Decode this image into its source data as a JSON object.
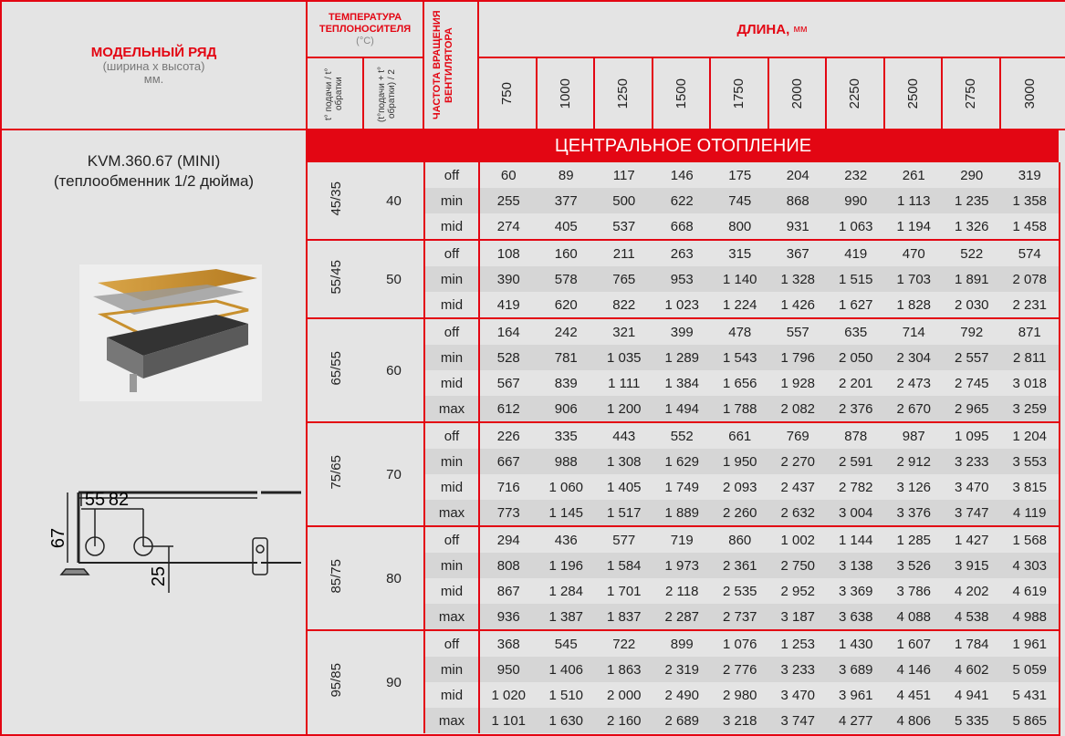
{
  "header": {
    "model_title": "МОДЕЛЬНЫЙ РЯД",
    "model_sub": "(ширина х высота) мм.",
    "temp_title": "ТЕМПЕРАТУРА ТЕПЛОНОСИТЕЛЯ",
    "temp_unit": "(°C)",
    "temp_col1": "t° подачи / t° обратки",
    "temp_col2": "(t°подачи + t° обратки) / 2",
    "fan_title": "ЧАСТОТА ВРАЩЕНИЯ ВЕНТИЛЯТОРА",
    "length_title": "ДЛИНА,",
    "length_unit": "мм",
    "lengths": [
      "750",
      "1000",
      "1250",
      "1500",
      "1750",
      "2000",
      "2250",
      "2500",
      "2750",
      "3000"
    ]
  },
  "model": {
    "name": "KVM.360.67 (MINI)",
    "desc": "(теплообменник 1/2 дюйма)",
    "dims": {
      "d1": "55",
      "d2": "82",
      "height": "67",
      "offset": "25"
    }
  },
  "section_title": "ЦЕНТРАЛЬНОЕ ОТОПЛЕНИЕ",
  "colors": {
    "accent": "#e30613",
    "background": "#e4e4e4",
    "stripe": "#d6d6d6"
  },
  "groups": [
    {
      "temp": "45/35",
      "avg": "40",
      "rows": [
        {
          "fan": "off",
          "values": [
            "60",
            "89",
            "117",
            "146",
            "175",
            "204",
            "232",
            "261",
            "290",
            "319"
          ]
        },
        {
          "fan": "min",
          "values": [
            "255",
            "377",
            "500",
            "622",
            "745",
            "868",
            "990",
            "1 113",
            "1 235",
            "1 358"
          ]
        },
        {
          "fan": "mid",
          "values": [
            "274",
            "405",
            "537",
            "668",
            "800",
            "931",
            "1 063",
            "1 194",
            "1 326",
            "1 458"
          ]
        }
      ]
    },
    {
      "temp": "55/45",
      "avg": "50",
      "rows": [
        {
          "fan": "off",
          "values": [
            "108",
            "160",
            "211",
            "263",
            "315",
            "367",
            "419",
            "470",
            "522",
            "574"
          ]
        },
        {
          "fan": "min",
          "values": [
            "390",
            "578",
            "765",
            "953",
            "1 140",
            "1 328",
            "1 515",
            "1 703",
            "1 891",
            "2 078"
          ]
        },
        {
          "fan": "mid",
          "values": [
            "419",
            "620",
            "822",
            "1 023",
            "1 224",
            "1 426",
            "1 627",
            "1 828",
            "2 030",
            "2 231"
          ]
        }
      ]
    },
    {
      "temp": "65/55",
      "avg": "60",
      "rows": [
        {
          "fan": "off",
          "values": [
            "164",
            "242",
            "321",
            "399",
            "478",
            "557",
            "635",
            "714",
            "792",
            "871"
          ]
        },
        {
          "fan": "min",
          "values": [
            "528",
            "781",
            "1 035",
            "1 289",
            "1 543",
            "1 796",
            "2 050",
            "2 304",
            "2 557",
            "2 811"
          ]
        },
        {
          "fan": "mid",
          "values": [
            "567",
            "839",
            "1 111",
            "1 384",
            "1 656",
            "1 928",
            "2 201",
            "2 473",
            "2 745",
            "3 018"
          ]
        },
        {
          "fan": "max",
          "values": [
            "612",
            "906",
            "1 200",
            "1 494",
            "1 788",
            "2 082",
            "2 376",
            "2 670",
            "2 965",
            "3 259"
          ]
        }
      ]
    },
    {
      "temp": "75/65",
      "avg": "70",
      "rows": [
        {
          "fan": "off",
          "values": [
            "226",
            "335",
            "443",
            "552",
            "661",
            "769",
            "878",
            "987",
            "1 095",
            "1 204"
          ]
        },
        {
          "fan": "min",
          "values": [
            "667",
            "988",
            "1 308",
            "1 629",
            "1 950",
            "2 270",
            "2 591",
            "2 912",
            "3 233",
            "3 553"
          ]
        },
        {
          "fan": "mid",
          "values": [
            "716",
            "1 060",
            "1 405",
            "1 749",
            "2 093",
            "2 437",
            "2 782",
            "3 126",
            "3 470",
            "3 815"
          ]
        },
        {
          "fan": "max",
          "values": [
            "773",
            "1 145",
            "1 517",
            "1 889",
            "2 260",
            "2 632",
            "3 004",
            "3 376",
            "3 747",
            "4 119"
          ]
        }
      ]
    },
    {
      "temp": "85/75",
      "avg": "80",
      "rows": [
        {
          "fan": "off",
          "values": [
            "294",
            "436",
            "577",
            "719",
            "860",
            "1 002",
            "1 144",
            "1 285",
            "1 427",
            "1 568"
          ]
        },
        {
          "fan": "min",
          "values": [
            "808",
            "1 196",
            "1 584",
            "1 973",
            "2 361",
            "2 750",
            "3 138",
            "3 526",
            "3 915",
            "4 303"
          ]
        },
        {
          "fan": "mid",
          "values": [
            "867",
            "1 284",
            "1 701",
            "2 118",
            "2 535",
            "2 952",
            "3 369",
            "3 786",
            "4 202",
            "4 619"
          ]
        },
        {
          "fan": "max",
          "values": [
            "936",
            "1 387",
            "1 837",
            "2 287",
            "2 737",
            "3 187",
            "3 638",
            "4 088",
            "4 538",
            "4 988"
          ]
        }
      ]
    },
    {
      "temp": "95/85",
      "avg": "90",
      "rows": [
        {
          "fan": "off",
          "values": [
            "368",
            "545",
            "722",
            "899",
            "1 076",
            "1 253",
            "1 430",
            "1 607",
            "1 784",
            "1 961"
          ]
        },
        {
          "fan": "min",
          "values": [
            "950",
            "1 406",
            "1 863",
            "2 319",
            "2 776",
            "3 233",
            "3 689",
            "4 146",
            "4 602",
            "5 059"
          ]
        },
        {
          "fan": "mid",
          "values": [
            "1 020",
            "1 510",
            "2 000",
            "2 490",
            "2 980",
            "3 470",
            "3 961",
            "4 451",
            "4 941",
            "5 431"
          ]
        },
        {
          "fan": "max",
          "values": [
            "1 101",
            "1 630",
            "2 160",
            "2 689",
            "3 218",
            "3 747",
            "4 277",
            "4 806",
            "5 335",
            "5 865"
          ]
        }
      ]
    }
  ]
}
